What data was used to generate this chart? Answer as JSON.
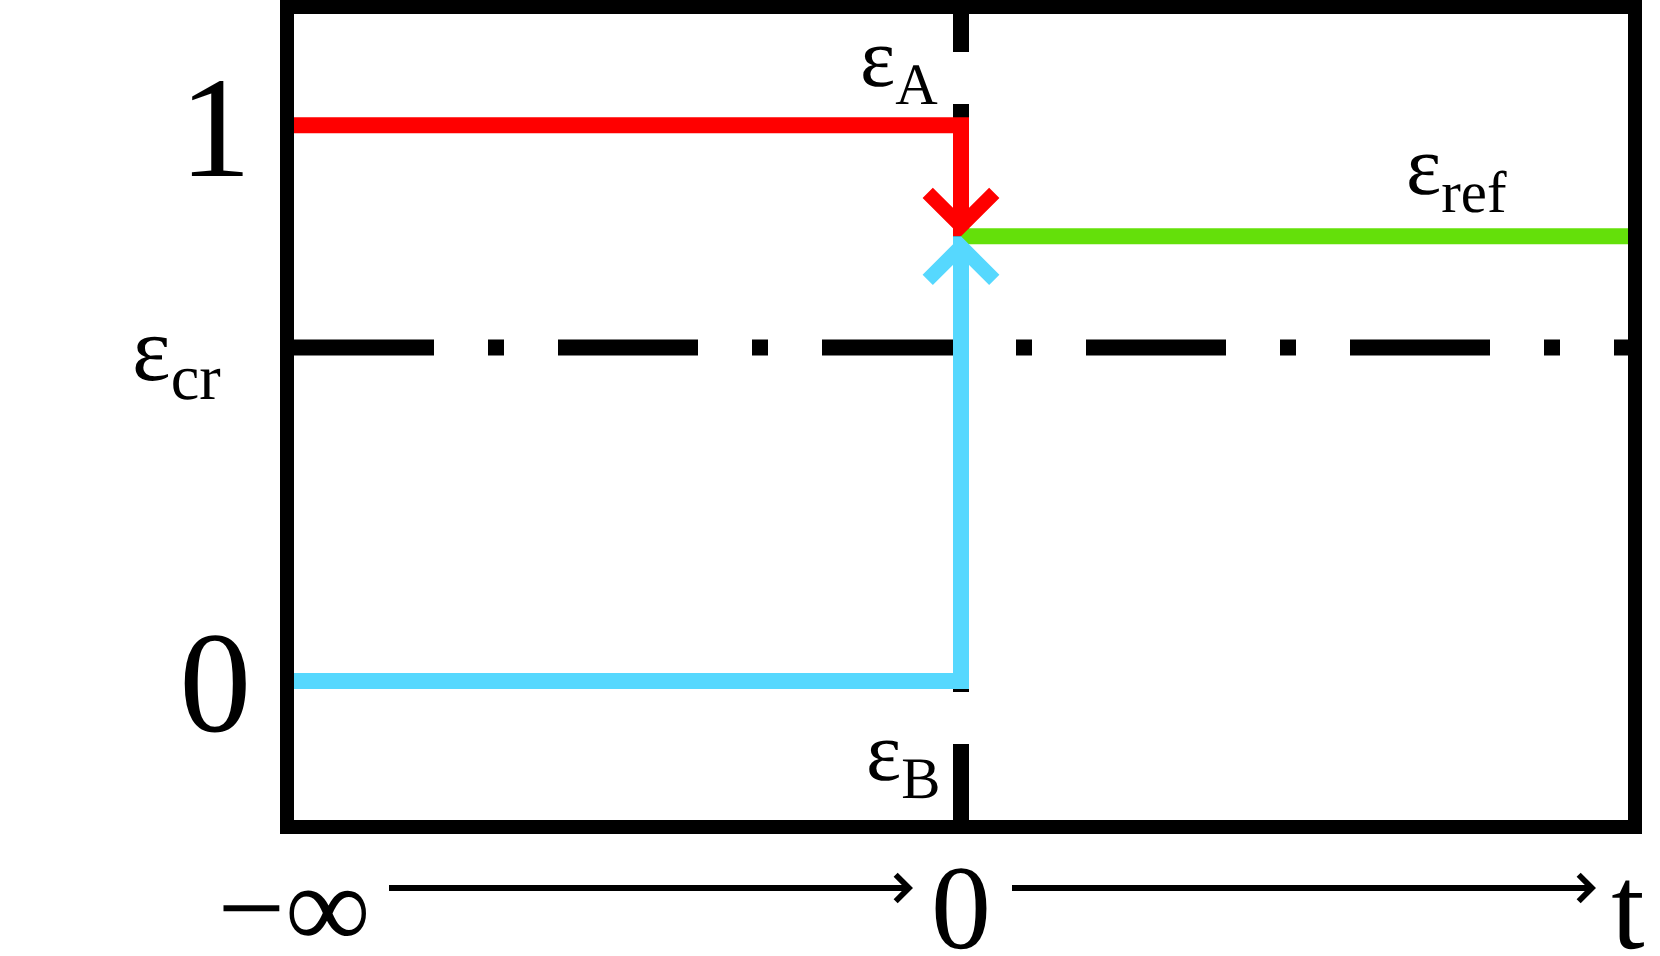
{
  "chart_data": {
    "type": "step",
    "categories": [
      "−∞",
      "0",
      "t"
    ],
    "ylim": [
      -0.25,
      1.2
    ],
    "yticks": [
      0,
      1
    ],
    "series": [
      {
        "name": "ε$_{A}$",
        "color": "#ff0000",
        "values": [
          1,
          0.8,
          null
        ]
      },
      {
        "name": "ε$_{B}$",
        "color": "#56d8fe",
        "values": [
          0,
          0.8,
          null
        ]
      },
      {
        "name": "ε$_{ref}$",
        "type": "line",
        "color": "#64e00a",
        "values": [
          null,
          0.8,
          0.8
        ]
      }
    ],
    "ref_lines": [
      {
        "axis": "x",
        "value": "0",
        "color": "#000000",
        "line_style": "dashed"
      },
      {
        "axis": "y",
        "value": 0.6,
        "label": "ε$_{cr}$",
        "color": "#000000",
        "line_style": "dashdot"
      }
    ]
  }
}
